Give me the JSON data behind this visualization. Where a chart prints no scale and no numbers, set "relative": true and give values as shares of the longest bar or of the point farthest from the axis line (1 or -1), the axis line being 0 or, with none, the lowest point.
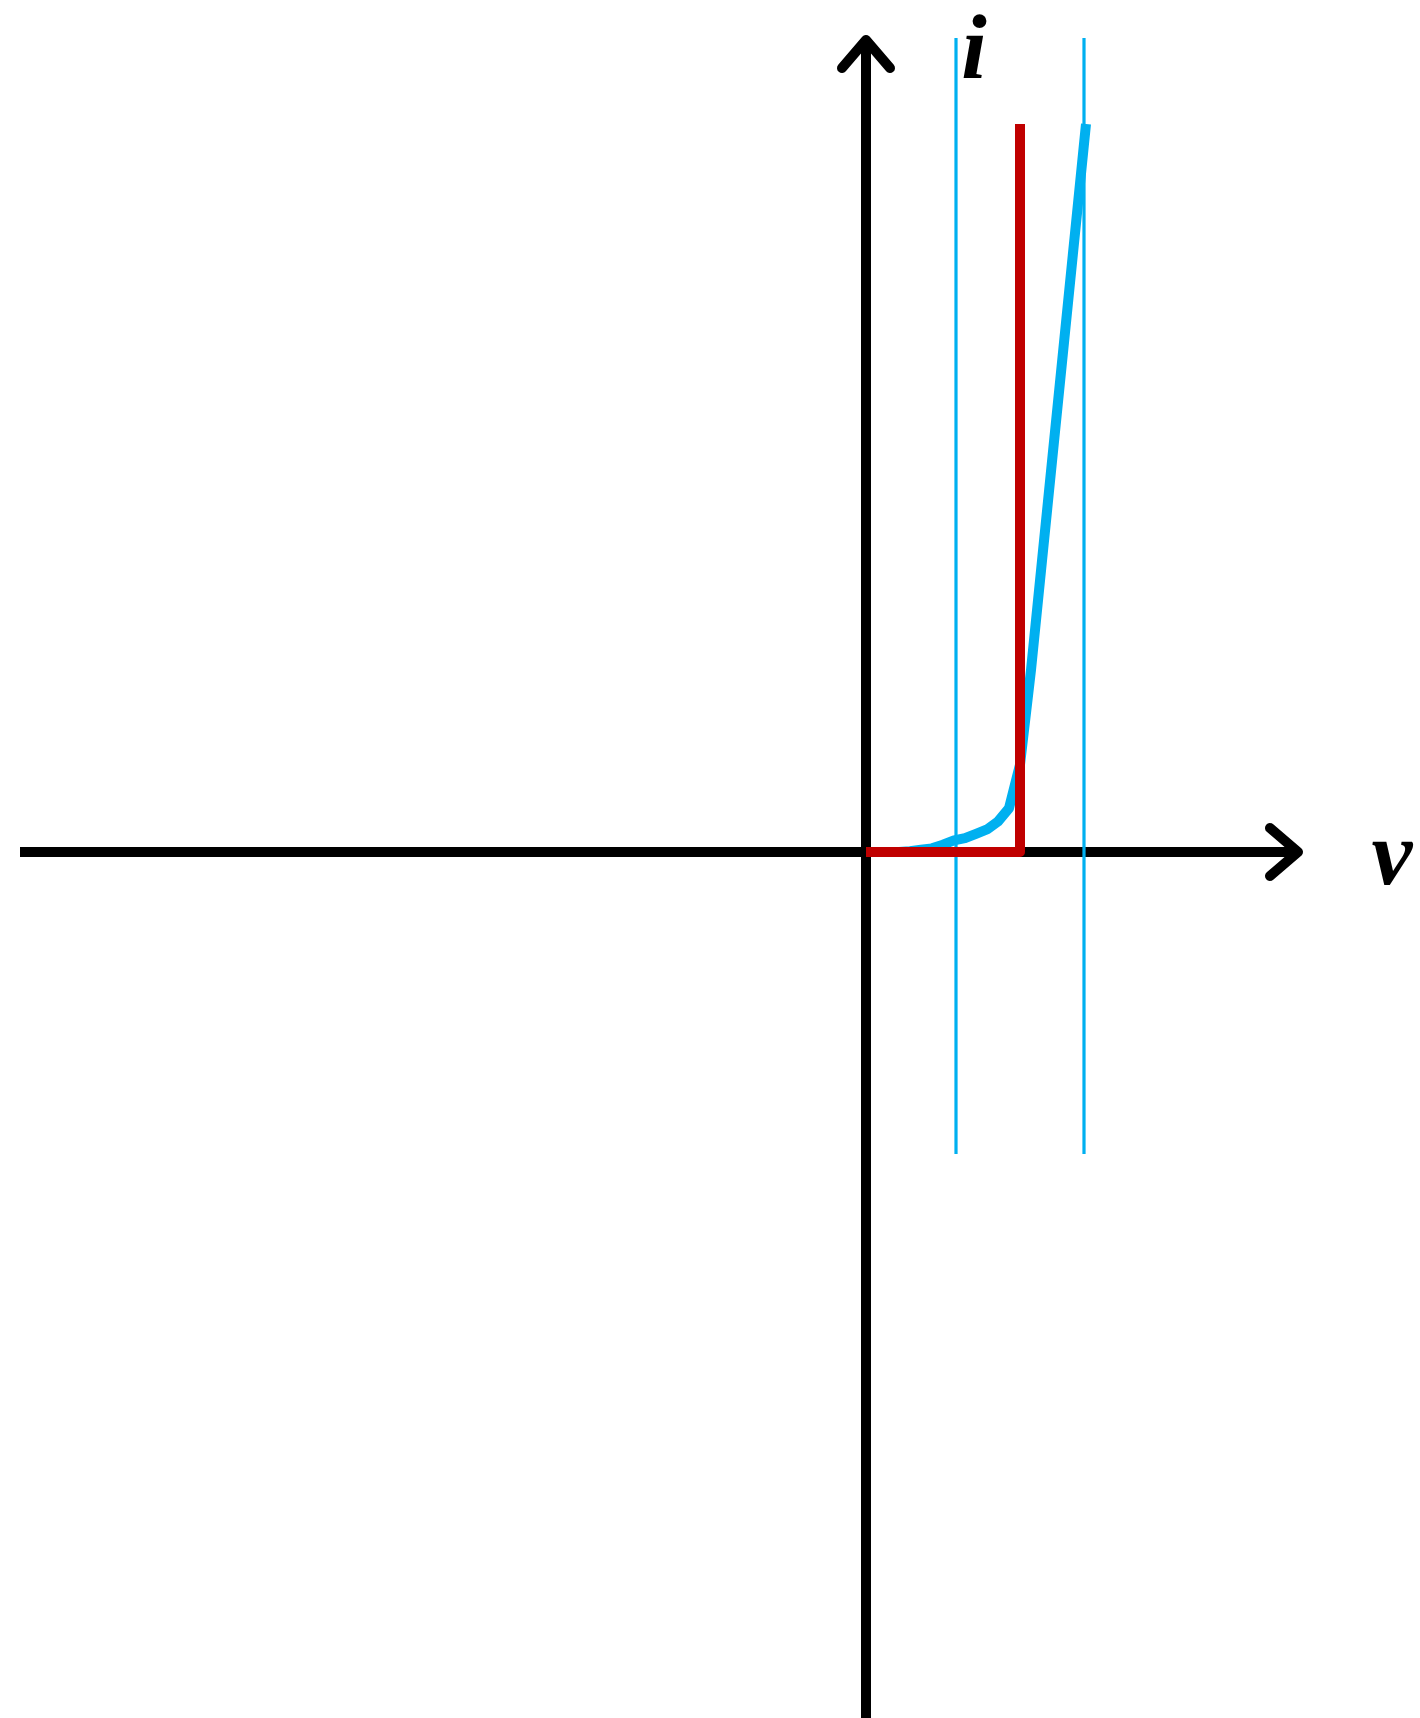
{
  "chart_data": {
    "type": "line",
    "relative": true,
    "xlabel": "v",
    "ylabel": "i",
    "categories": [
      null,
      null,
      null,
      null,
      null,
      null,
      null,
      null,
      null,
      null,
      null,
      null,
      null,
      null,
      null,
      null,
      null,
      null,
      null,
      null,
      null
    ],
    "series": [
      {
        "color": "#00b0f0",
        "values": [
          null,
          null,
          0,
          0,
          0.001,
          0.003,
          0.005,
          0.01,
          0.016,
          0.019,
          0.025,
          0.031,
          0.042,
          0.06,
          0.12,
          0.25,
          0.4,
          0.55,
          0.7,
          0.85,
          1
        ]
      },
      {
        "type": "step",
        "color": "#c00000",
        "values": [
          0,
          0,
          0,
          0,
          0,
          0,
          0,
          0,
          0,
          0,
          0,
          0,
          0,
          0,
          1,
          null,
          null,
          null,
          null,
          null,
          null
        ]
      }
    ]
  }
}
